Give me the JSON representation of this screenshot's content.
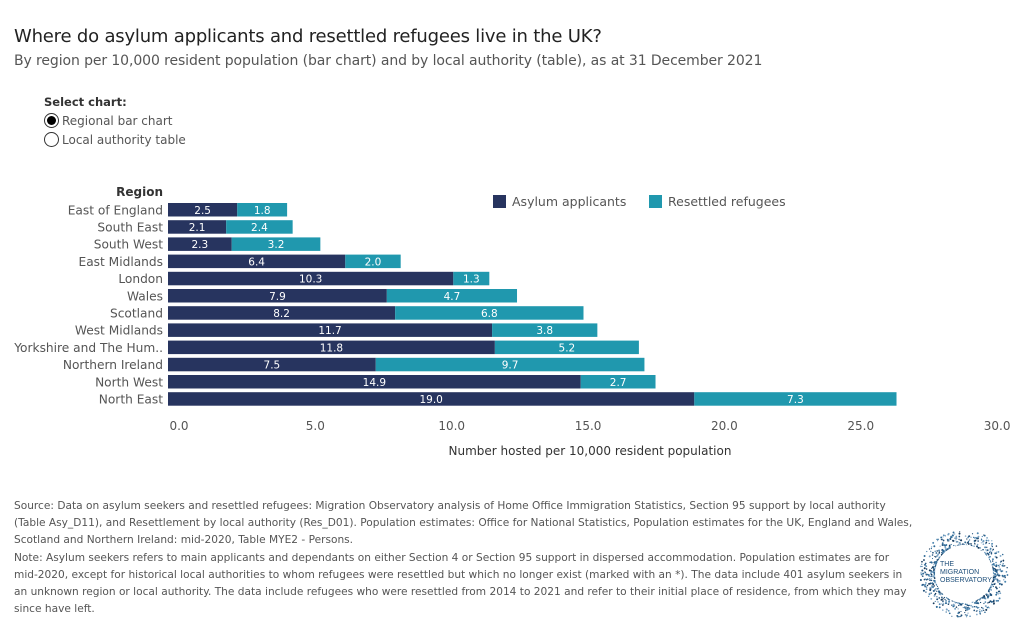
{
  "title": "Where do asylum applicants and resettled refugees live in the UK?",
  "subtitle": "By region per 10,000 resident population (bar chart) and by local authority (table), as at 31 December 2021",
  "selector": {
    "label": "Select chart:",
    "options": [
      {
        "label": "Regional bar chart",
        "selected": true
      },
      {
        "label": "Local authority table",
        "selected": false
      }
    ]
  },
  "chart_data": {
    "type": "bar",
    "orientation": "horizontal",
    "stacked": true,
    "title": "",
    "category_header": "Region",
    "xlabel": "Number hosted per 10,000 resident population",
    "ylabel": "Region",
    "xlim": [
      0,
      30
    ],
    "x_ticks": [
      "0.0",
      "5.0",
      "10.0",
      "15.0",
      "20.0",
      "25.0",
      "30.0"
    ],
    "x_tick_values": [
      0,
      5,
      10,
      15,
      20,
      25,
      30
    ],
    "grid": false,
    "legend_position": "top-right",
    "categories": [
      "East of England",
      "South East",
      "South West",
      "East Midlands",
      "London",
      "Wales",
      "Scotland",
      "West Midlands",
      "Yorkshire and The Hum..",
      "Northern Ireland",
      "North West",
      "North East"
    ],
    "series": [
      {
        "name": "Asylum applicants",
        "color": "#27345f",
        "values": [
          2.5,
          2.1,
          2.3,
          6.4,
          10.3,
          7.9,
          8.2,
          11.7,
          11.8,
          7.5,
          14.9,
          19.0
        ]
      },
      {
        "name": "Resettled refugees",
        "color": "#2098ae",
        "values": [
          1.8,
          2.4,
          3.2,
          2.0,
          1.3,
          4.7,
          6.8,
          3.8,
          5.2,
          9.7,
          2.7,
          7.3
        ]
      }
    ]
  },
  "notes": {
    "source": "Source: Data on asylum seekers and resettled refugees: Migration Observatory analysis of Home Office Immigration Statistics, Section 95 support by local authority (Table Asy_D11), and Resettlement by local authority (Res_D01). Population estimates: Office for National Statistics, Population estimates for the UK, England and Wales, Scotland and Northern Ireland: mid-2020, Table MYE2 - Persons.",
    "note": "Note: Asylum seekers refers to main applicants and dependants on either Section 4 or Section 95 support in dispersed accommodation. Population estimates are for mid-2020, except for historical local authorities to whom refugees were resettled but which no longer exist (marked with an *). The data include 401 asylum seekers in an unknown region or local authority.  The data include refugees who were resettled from 2014 to 2021 and refer to their initial place of residence, from which they may since have left."
  },
  "logo": {
    "line1": "THE",
    "line2": "MIGRATION",
    "line3": "OBSERVATORY"
  }
}
